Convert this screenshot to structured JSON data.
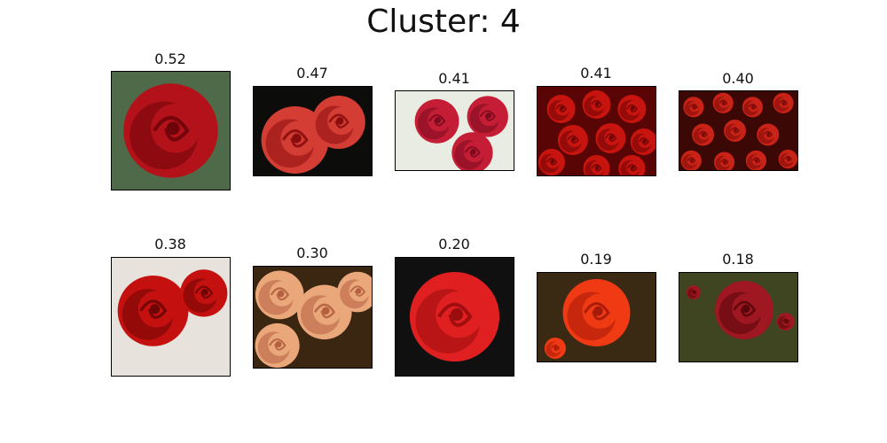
{
  "title": "Cluster: 4",
  "images": [
    {
      "score": "0.52",
      "bg": "#4f6a48",
      "flower": "#b4121a",
      "dark": "#6e0409",
      "subject": "red-rose-closeup"
    },
    {
      "score": "0.47",
      "bg": "#0c0c0a",
      "flower": "#d43d34",
      "dark": "#8a0d0e",
      "subject": "red-rose-side"
    },
    {
      "score": "0.41",
      "bg": "#e9ece3",
      "flower": "#c41d35",
      "dark": "#7a0b1e",
      "subject": "red-roses-white-flowers"
    },
    {
      "score": "0.41",
      "bg": "#5a0505",
      "flower": "#c8140f",
      "dark": "#6b0405",
      "subject": "red-roses-bouquet"
    },
    {
      "score": "0.40",
      "bg": "#3c0806",
      "flower": "#c92317",
      "dark": "#7a0a07",
      "subject": "red-roses-field"
    },
    {
      "score": "0.38",
      "bg": "#e8e2dc",
      "flower": "#c4100e",
      "dark": "#6e0506",
      "subject": "red-roses-pair"
    },
    {
      "score": "0.30",
      "bg": "#3b2612",
      "flower": "#e9a77a",
      "dark": "#b45f3f",
      "subject": "peach-roses"
    },
    {
      "score": "0.20",
      "bg": "#101010",
      "flower": "#e02020",
      "dark": "#9a0c0e",
      "subject": "single-red-rose"
    },
    {
      "score": "0.19",
      "bg": "#3a2a14",
      "flower": "#f03a14",
      "dark": "#a51a08",
      "subject": "orange-red-rose"
    },
    {
      "score": "0.18",
      "bg": "#3e4520",
      "flower": "#9e1721",
      "dark": "#5a070c",
      "subject": "dark-red-rose-buds"
    }
  ]
}
